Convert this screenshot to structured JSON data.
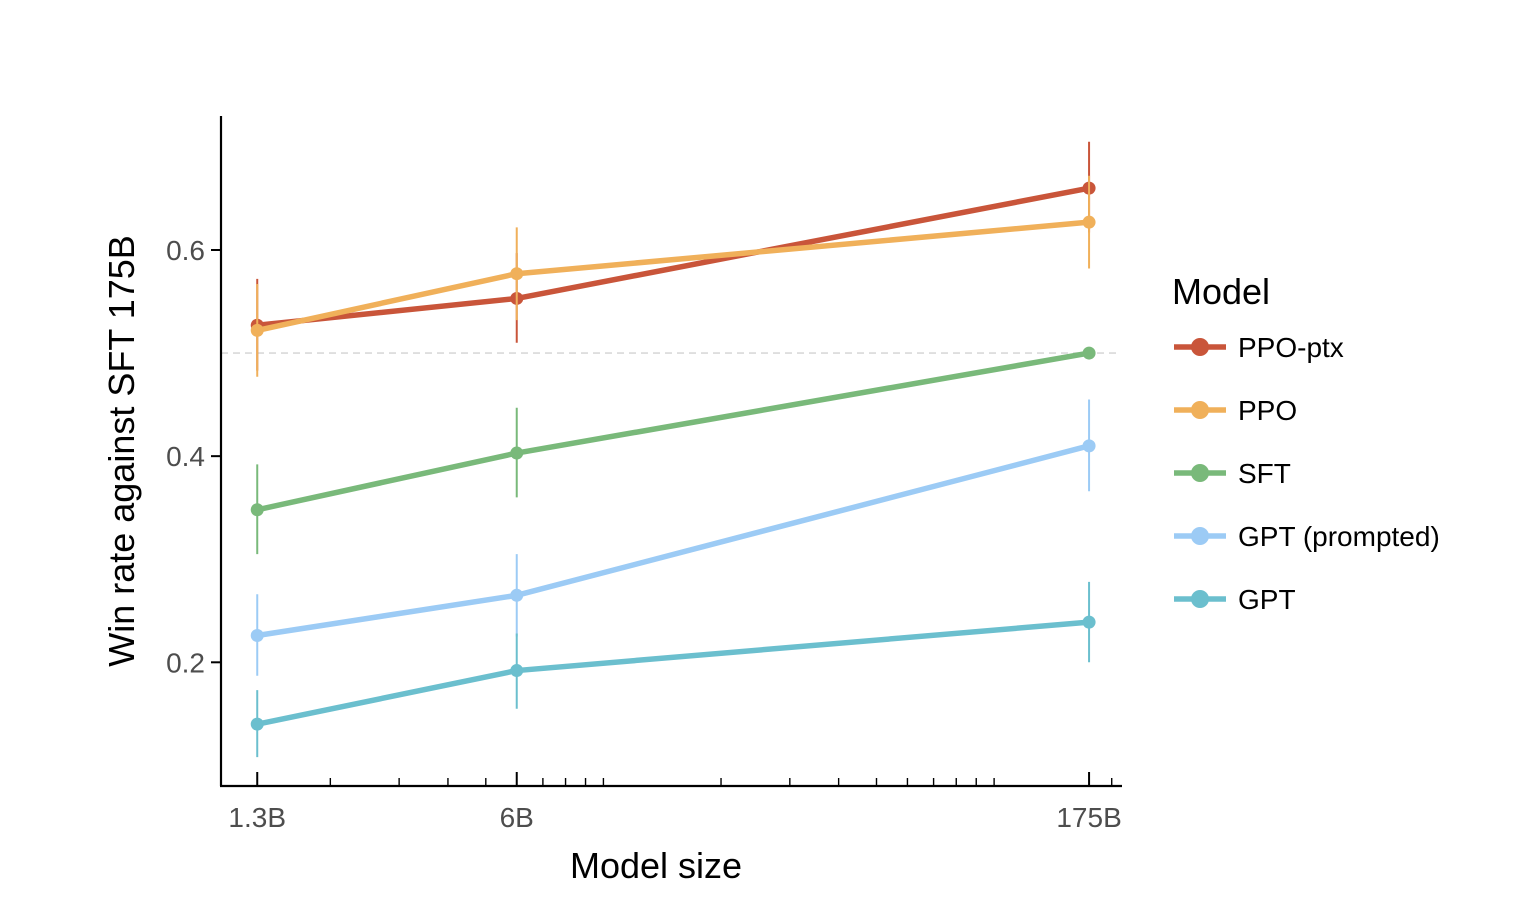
{
  "chart_data": {
    "type": "line",
    "xlabel": "Model size",
    "ylabel": "Win rate against SFT 175B",
    "x_scale": "log",
    "x_params_billions": [
      1.3,
      6,
      175
    ],
    "categories": [
      "1.3B",
      "6B",
      "175B"
    ],
    "xlim": [
      1.05,
      210
    ],
    "ylim": [
      0.08,
      0.73
    ],
    "yticks": [
      0.2,
      0.4,
      0.6
    ],
    "ytick_labels": [
      "0.2",
      "0.4",
      "0.6"
    ],
    "reference_line": {
      "y": 0.5,
      "style": "dashed",
      "color": "#d9d9d9"
    },
    "grid": false,
    "legend": {
      "title": "Model",
      "position": "right"
    },
    "series": [
      {
        "name": "PPO-ptx",
        "color": "#c9553a",
        "values": [
          0.527,
          0.553,
          0.66
        ],
        "err_low": [
          0.483,
          0.51,
          0.617
        ],
        "err_high": [
          0.572,
          0.597,
          0.705
        ]
      },
      {
        "name": "PPO",
        "color": "#f0b05a",
        "values": [
          0.522,
          0.577,
          0.627
        ],
        "err_low": [
          0.477,
          0.532,
          0.582
        ],
        "err_high": [
          0.567,
          0.622,
          0.672
        ]
      },
      {
        "name": "SFT",
        "color": "#79b97a",
        "values": [
          0.348,
          0.403,
          0.5
        ],
        "err_low": [
          0.305,
          0.36,
          0.5
        ],
        "err_high": [
          0.392,
          0.447,
          0.5
        ]
      },
      {
        "name": "GPT (prompted)",
        "color": "#9ccbf5",
        "values": [
          0.226,
          0.265,
          0.41
        ],
        "err_low": [
          0.187,
          0.225,
          0.366
        ],
        "err_high": [
          0.266,
          0.305,
          0.455
        ]
      },
      {
        "name": "GPT",
        "color": "#6bbfce",
        "values": [
          0.14,
          0.192,
          0.239
        ],
        "err_low": [
          0.108,
          0.155,
          0.2
        ],
        "err_high": [
          0.173,
          0.228,
          0.278
        ]
      }
    ]
  }
}
